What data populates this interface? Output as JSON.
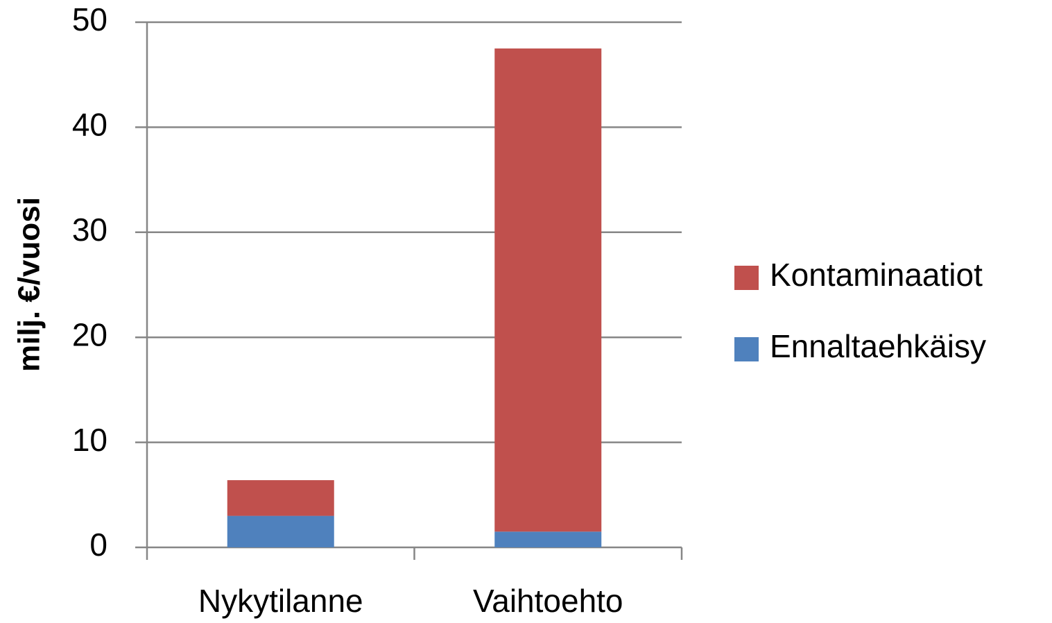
{
  "chart_data": {
    "type": "stacked_bar",
    "y_label": "milj. €/vuosi",
    "categories": [
      "Nykytilanne",
      "Vaihtoehto"
    ],
    "series": [
      {
        "name": "Ennaltaehkäisy",
        "color": "#4f81bd",
        "values": [
          3,
          1.5
        ]
      },
      {
        "name": "Kontaminaatiot",
        "color": "#c0504d",
        "values": [
          3.4,
          46
        ]
      }
    ],
    "ylim": [
      0,
      50
    ],
    "yticks": [
      0,
      10,
      20,
      30,
      40,
      50
    ],
    "grid": true,
    "legend": "right"
  }
}
